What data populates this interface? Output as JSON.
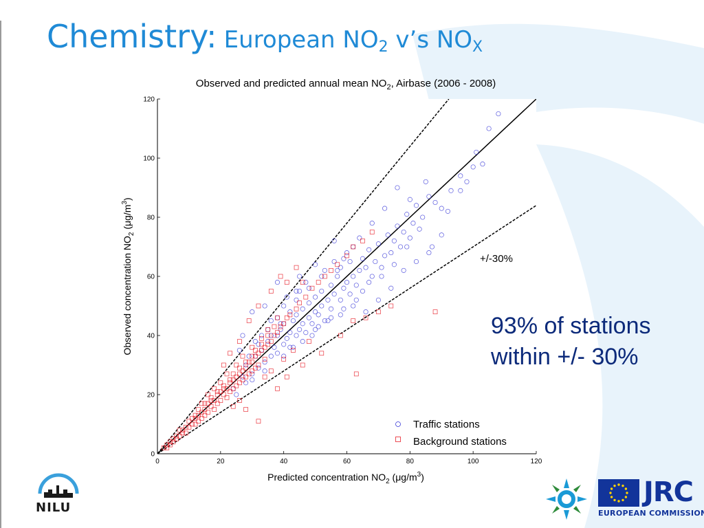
{
  "slide": {
    "title_main": "Chemistry:",
    "title_sub_pre": "European NO",
    "title_sub_sub": "2",
    "title_sub_mid": " v’s NO",
    "title_sub_sub2": "X",
    "callout_line1": "93% of stations",
    "callout_line2": "within +/- 30%"
  },
  "logos": {
    "nilu": "NILU",
    "jrc": "JRC",
    "ec": "EUROPEAN COMMISSION"
  },
  "colors": {
    "title": "#1f8ad6",
    "callout": "#0c2a7a",
    "traffic": "#3a3ad8",
    "background": "#e8202a",
    "accent_bg": "#e8f3fb",
    "eu_blue": "#12349a"
  },
  "chart_data": {
    "type": "scatter",
    "title_pre": "Observed and predicted annual mean NO",
    "title_sub": "2",
    "title_post": ", Airbase (2006 - 2008)",
    "xlabel_pre": "Predicted concentration NO",
    "xlabel_sub": "2",
    "xlabel_post": " (μg/m",
    "xlabel_sup": "3",
    "xlabel_end": ")",
    "ylabel_pre": "Observed concentration NO",
    "ylabel_sub": "2",
    "ylabel_post": " (μg/m",
    "ylabel_sup": "3",
    "ylabel_end": ")",
    "xlim": [
      0,
      120
    ],
    "ylim": [
      0,
      120
    ],
    "xticks": [
      "0",
      "20",
      "40",
      "60",
      "80",
      "100",
      "120"
    ],
    "yticks": [
      "0",
      "20",
      "40",
      "60",
      "80",
      "100",
      "120"
    ],
    "grid": false,
    "legend_position": "bottom-right",
    "annotation": "+/-30%",
    "reference_lines": [
      {
        "name": "1:1",
        "slope": 1.0,
        "style": "solid"
      },
      {
        "name": "+30%",
        "slope": 1.3,
        "style": "dashed"
      },
      {
        "name": "-30%",
        "slope": 0.7,
        "style": "dashed"
      }
    ],
    "series": [
      {
        "name": "Traffic stations",
        "marker": "circle",
        "color": "#3a3ad8",
        "points": [
          [
            24,
            22
          ],
          [
            27,
            26
          ],
          [
            28,
            30
          ],
          [
            30,
            27
          ],
          [
            31,
            33
          ],
          [
            32,
            29
          ],
          [
            33,
            35
          ],
          [
            34,
            31
          ],
          [
            35,
            38
          ],
          [
            36,
            33
          ],
          [
            37,
            36
          ],
          [
            38,
            40
          ],
          [
            38,
            34
          ],
          [
            39,
            42
          ],
          [
            40,
            37
          ],
          [
            40,
            44
          ],
          [
            41,
            39
          ],
          [
            42,
            41
          ],
          [
            42,
            36
          ],
          [
            43,
            45
          ],
          [
            44,
            40
          ],
          [
            44,
            47
          ],
          [
            45,
            42
          ],
          [
            46,
            44
          ],
          [
            46,
            49
          ],
          [
            47,
            41
          ],
          [
            48,
            46
          ],
          [
            48,
            51
          ],
          [
            49,
            44
          ],
          [
            50,
            48
          ],
          [
            50,
            53
          ],
          [
            51,
            47
          ],
          [
            52,
            50
          ],
          [
            52,
            55
          ],
          [
            53,
            45
          ],
          [
            54,
            52
          ],
          [
            55,
            57
          ],
          [
            55,
            49
          ],
          [
            56,
            54
          ],
          [
            57,
            60
          ],
          [
            58,
            52
          ],
          [
            58,
            63
          ],
          [
            59,
            56
          ],
          [
            60,
            58
          ],
          [
            61,
            54
          ],
          [
            61,
            65
          ],
          [
            62,
            60
          ],
          [
            63,
            57
          ],
          [
            64,
            62
          ],
          [
            65,
            66
          ],
          [
            65,
            55
          ],
          [
            66,
            63
          ],
          [
            67,
            69
          ],
          [
            68,
            60
          ],
          [
            69,
            65
          ],
          [
            70,
            71
          ],
          [
            71,
            63
          ],
          [
            72,
            67
          ],
          [
            73,
            74
          ],
          [
            74,
            68
          ],
          [
            75,
            72
          ],
          [
            76,
            77
          ],
          [
            77,
            70
          ],
          [
            78,
            75
          ],
          [
            79,
            81
          ],
          [
            80,
            73
          ],
          [
            81,
            78
          ],
          [
            82,
            84
          ],
          [
            84,
            80
          ],
          [
            86,
            87
          ],
          [
            88,
            85
          ],
          [
            90,
            83
          ],
          [
            93,
            89
          ],
          [
            96,
            94
          ],
          [
            100,
            97
          ],
          [
            103,
            98
          ],
          [
            105,
            110
          ],
          [
            108,
            115
          ],
          [
            101,
            102
          ],
          [
            85,
            92
          ],
          [
            80,
            86
          ],
          [
            76,
            90
          ],
          [
            72,
            83
          ],
          [
            68,
            78
          ],
          [
            62,
            70
          ],
          [
            56,
            65
          ],
          [
            52,
            60
          ],
          [
            48,
            56
          ],
          [
            44,
            52
          ],
          [
            66,
            48
          ],
          [
            70,
            52
          ],
          [
            74,
            56
          ],
          [
            78,
            62
          ],
          [
            62,
            50
          ],
          [
            58,
            47
          ],
          [
            54,
            45
          ],
          [
            50,
            42
          ],
          [
            86,
            68
          ],
          [
            90,
            74
          ],
          [
            45,
            55
          ],
          [
            40,
            50
          ],
          [
            36,
            45
          ],
          [
            33,
            40
          ],
          [
            31,
            38
          ],
          [
            38,
            58
          ],
          [
            34,
            50
          ],
          [
            30,
            48
          ],
          [
            27,
            40
          ],
          [
            26,
            35
          ],
          [
            82,
            65
          ],
          [
            87,
            70
          ],
          [
            64,
            73
          ],
          [
            60,
            68
          ],
          [
            57,
            62
          ],
          [
            42,
            48
          ],
          [
            39,
            44
          ],
          [
            36,
            40
          ],
          [
            44,
            55
          ],
          [
            47,
            58
          ],
          [
            53,
            62
          ],
          [
            59,
            66
          ],
          [
            67,
            58
          ],
          [
            71,
            60
          ],
          [
            75,
            64
          ],
          [
            79,
            70
          ],
          [
            83,
            76
          ],
          [
            92,
            82
          ],
          [
            96,
            89
          ],
          [
            98,
            92
          ],
          [
            40,
            33
          ],
          [
            43,
            36
          ],
          [
            46,
            38
          ],
          [
            49,
            40
          ],
          [
            51,
            43
          ],
          [
            55,
            46
          ],
          [
            59,
            49
          ],
          [
            63,
            52
          ],
          [
            28,
            24
          ],
          [
            30,
            25
          ],
          [
            34,
            28
          ],
          [
            25,
            20
          ],
          [
            29,
            33
          ],
          [
            32,
            37
          ],
          [
            35,
            42
          ],
          [
            38,
            46
          ],
          [
            41,
            53
          ],
          [
            45,
            60
          ],
          [
            50,
            64
          ],
          [
            56,
            72
          ]
        ]
      },
      {
        "name": "Background stations",
        "marker": "square",
        "color": "#e8202a",
        "points": [
          [
            2,
            2
          ],
          [
            3,
            3
          ],
          [
            4,
            4
          ],
          [
            5,
            5
          ],
          [
            6,
            6
          ],
          [
            7,
            6
          ],
          [
            7,
            8
          ],
          [
            8,
            8
          ],
          [
            9,
            9
          ],
          [
            9,
            7
          ],
          [
            10,
            11
          ],
          [
            10,
            9
          ],
          [
            11,
            10
          ],
          [
            11,
            12
          ],
          [
            12,
            12
          ],
          [
            12,
            10
          ],
          [
            13,
            13
          ],
          [
            13,
            11
          ],
          [
            14,
            14
          ],
          [
            14,
            12
          ],
          [
            15,
            15
          ],
          [
            15,
            13
          ],
          [
            16,
            17
          ],
          [
            16,
            14
          ],
          [
            17,
            16
          ],
          [
            17,
            19
          ],
          [
            18,
            18
          ],
          [
            18,
            15
          ],
          [
            19,
            20
          ],
          [
            19,
            17
          ],
          [
            20,
            21
          ],
          [
            20,
            18
          ],
          [
            21,
            20
          ],
          [
            21,
            23
          ],
          [
            22,
            22
          ],
          [
            22,
            19
          ],
          [
            23,
            24
          ],
          [
            23,
            21
          ],
          [
            24,
            25
          ],
          [
            24,
            22
          ],
          [
            25,
            26
          ],
          [
            25,
            23
          ],
          [
            26,
            27
          ],
          [
            26,
            24
          ],
          [
            27,
            28
          ],
          [
            27,
            25
          ],
          [
            28,
            29
          ],
          [
            28,
            26
          ],
          [
            29,
            31
          ],
          [
            29,
            27
          ],
          [
            30,
            31
          ],
          [
            30,
            28
          ],
          [
            31,
            33
          ],
          [
            31,
            29
          ],
          [
            32,
            34
          ],
          [
            32,
            30
          ],
          [
            33,
            35
          ],
          [
            34,
            36
          ],
          [
            34,
            32
          ],
          [
            35,
            37
          ],
          [
            36,
            38
          ],
          [
            37,
            40
          ],
          [
            38,
            41
          ],
          [
            39,
            43
          ],
          [
            40,
            44
          ],
          [
            41,
            46
          ],
          [
            42,
            47
          ],
          [
            44,
            49
          ],
          [
            45,
            51
          ],
          [
            47,
            53
          ],
          [
            49,
            56
          ],
          [
            51,
            58
          ],
          [
            53,
            60
          ],
          [
            55,
            62
          ],
          [
            57,
            64
          ],
          [
            60,
            67
          ],
          [
            62,
            70
          ],
          [
            65,
            72
          ],
          [
            68,
            75
          ],
          [
            25,
            30
          ],
          [
            20,
            24
          ],
          [
            18,
            22
          ],
          [
            16,
            20
          ],
          [
            14,
            17
          ],
          [
            22,
            27
          ],
          [
            27,
            33
          ],
          [
            30,
            36
          ],
          [
            33,
            39
          ],
          [
            35,
            42
          ],
          [
            38,
            46
          ],
          [
            32,
            50
          ],
          [
            29,
            45
          ],
          [
            26,
            38
          ],
          [
            23,
            34
          ],
          [
            21,
            30
          ],
          [
            36,
            55
          ],
          [
            39,
            60
          ],
          [
            41,
            58
          ],
          [
            44,
            63
          ],
          [
            46,
            58
          ],
          [
            32,
            11
          ],
          [
            28,
            15
          ],
          [
            26,
            18
          ],
          [
            24,
            16
          ],
          [
            38,
            22
          ],
          [
            41,
            26
          ],
          [
            46,
            30
          ],
          [
            52,
            34
          ],
          [
            58,
            40
          ],
          [
            62,
            45
          ],
          [
            70,
            48
          ],
          [
            74,
            50
          ],
          [
            66,
            46
          ],
          [
            88,
            48
          ],
          [
            63,
            27
          ],
          [
            34,
            26
          ],
          [
            36,
            28
          ],
          [
            40,
            32
          ],
          [
            43,
            35
          ],
          [
            48,
            38
          ],
          [
            8,
            7
          ],
          [
            6,
            5
          ],
          [
            4,
            3
          ],
          [
            3,
            2
          ],
          [
            5,
            4
          ],
          [
            12,
            13
          ],
          [
            13,
            15
          ],
          [
            15,
            17
          ],
          [
            17,
            18
          ],
          [
            19,
            21
          ],
          [
            21,
            22
          ],
          [
            23,
            25
          ],
          [
            24,
            27
          ],
          [
            26,
            29
          ],
          [
            28,
            31
          ],
          [
            30,
            33
          ],
          [
            31,
            35
          ],
          [
            33,
            37
          ],
          [
            35,
            40
          ],
          [
            37,
            43
          ]
        ]
      }
    ]
  }
}
